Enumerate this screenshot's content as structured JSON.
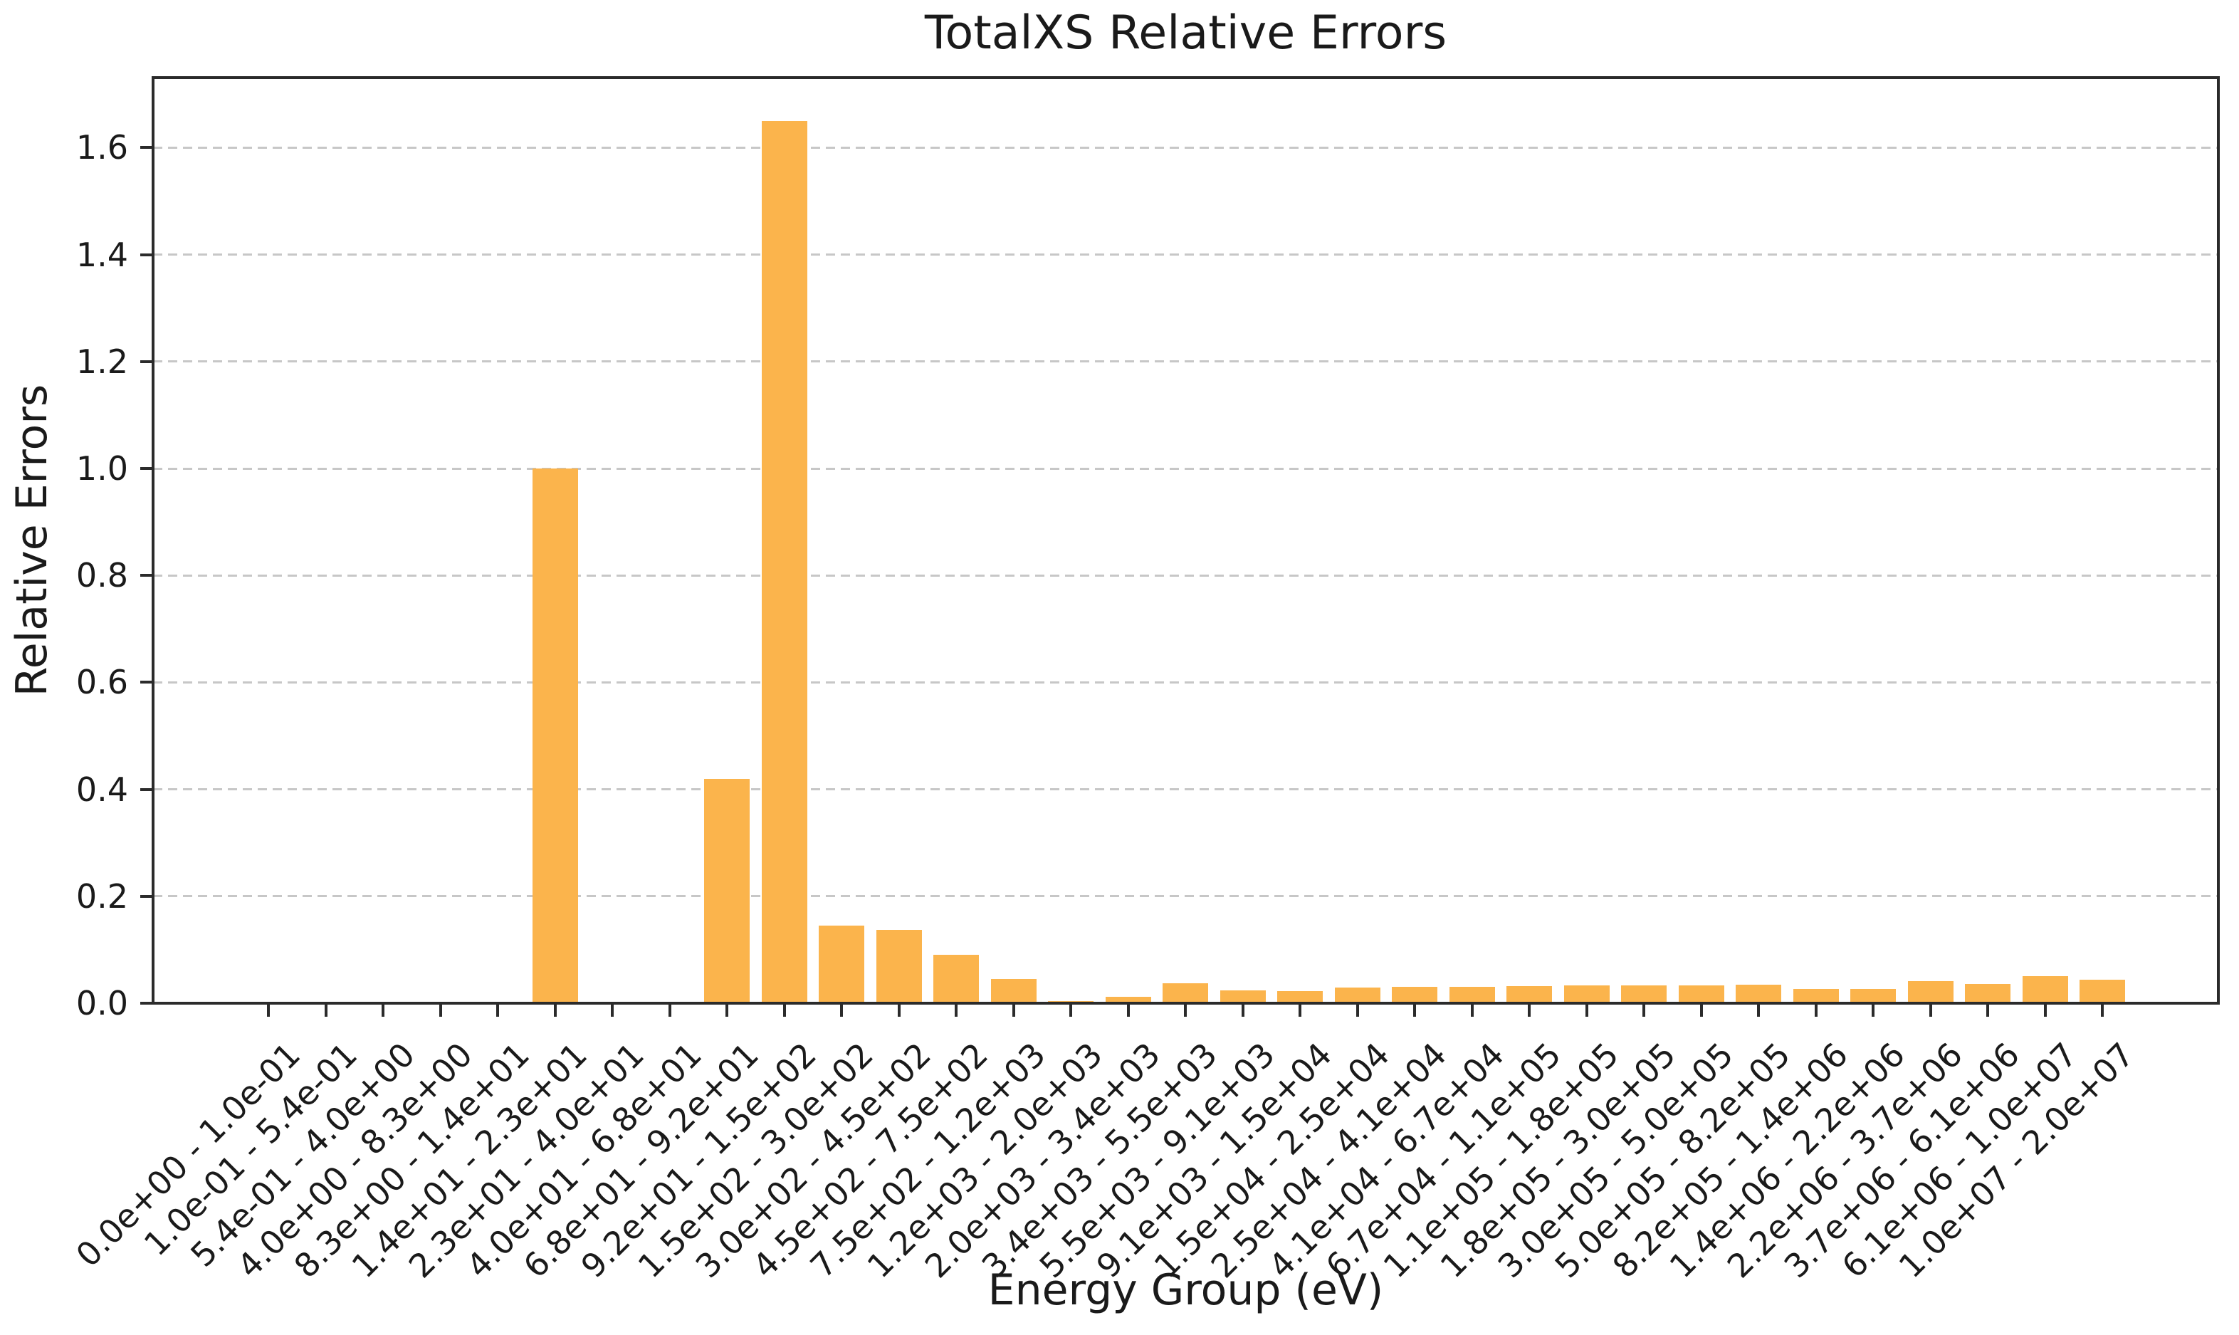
{
  "chart_data": {
    "type": "bar",
    "title": "TotalXS Relative Errors",
    "xlabel": "Energy Group (eV)",
    "ylabel": "Relative Errors",
    "categories": [
      "0.0e+00 - 1.0e-01",
      "1.0e-01 - 5.4e-01",
      "5.4e-01 - 4.0e+00",
      "4.0e+00 - 8.3e+00",
      "8.3e+00 - 1.4e+01",
      "1.4e+01 - 2.3e+01",
      "2.3e+01 - 4.0e+01",
      "4.0e+01 - 6.8e+01",
      "6.8e+01 - 9.2e+01",
      "9.2e+01 - 1.5e+02",
      "1.5e+02 - 3.0e+02",
      "3.0e+02 - 4.5e+02",
      "4.5e+02 - 7.5e+02",
      "7.5e+02 - 1.2e+03",
      "1.2e+03 - 2.0e+03",
      "2.0e+03 - 3.4e+03",
      "3.4e+03 - 5.5e+03",
      "5.5e+03 - 9.1e+03",
      "9.1e+03 - 1.5e+04",
      "1.5e+04 - 2.5e+04",
      "2.5e+04 - 4.1e+04",
      "4.1e+04 - 6.7e+04",
      "6.7e+04 - 1.1e+05",
      "1.1e+05 - 1.8e+05",
      "1.8e+05 - 3.0e+05",
      "3.0e+05 - 5.0e+05",
      "5.0e+05 - 8.2e+05",
      "8.2e+05 - 1.4e+06",
      "1.4e+06 - 2.2e+06",
      "2.2e+06 - 3.7e+06",
      "3.7e+06 - 6.1e+06",
      "6.1e+06 - 1.0e+07",
      "1.0e+07 - 2.0e+07"
    ],
    "values": [
      0,
      0,
      0,
      0,
      0,
      1.0,
      0,
      0,
      0.42,
      1.65,
      0.145,
      0.137,
      0.091,
      0.045,
      0.004,
      0.012,
      0.037,
      0.024,
      0.023,
      0.029,
      0.03,
      0.031,
      0.032,
      0.033,
      0.033,
      0.033,
      0.034,
      0.027,
      0.027,
      0.041,
      0.036,
      0.051,
      0.044
    ],
    "ylim": [
      0,
      1.73
    ],
    "yticks": [
      0.0,
      0.2,
      0.4,
      0.6,
      0.8,
      1.0,
      1.2,
      1.4,
      1.6
    ],
    "ytick_labels": [
      "0.0",
      "0.2",
      "0.4",
      "0.6",
      "0.8",
      "1.0",
      "1.2",
      "1.4",
      "1.6"
    ],
    "xtick_rotation_deg": 45,
    "grid": "horizontal-dashed",
    "legend": "none",
    "bar_color": "#fbb44c",
    "gridline_color": "#c7c7c7",
    "axis_color": "#2b2b2b",
    "text_color": "#1a1a1a",
    "background_color": "#ffffff"
  }
}
